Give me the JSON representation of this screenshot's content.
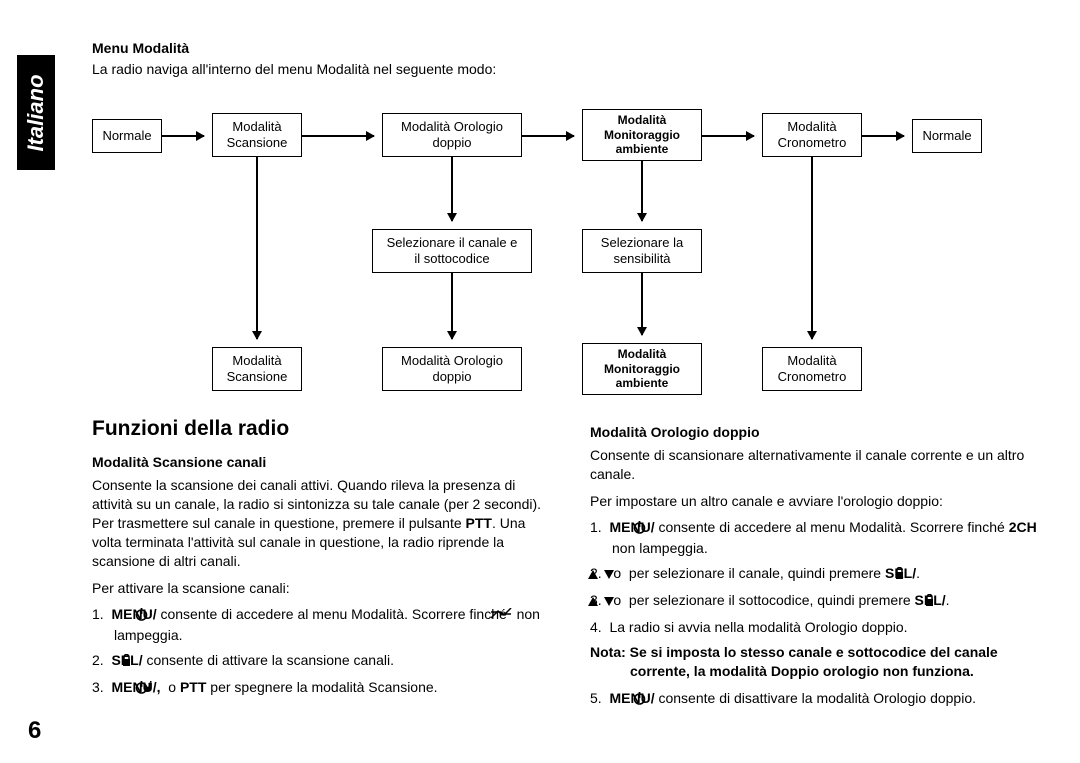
{
  "sidebar": {
    "language": "Italiano"
  },
  "page_number": "6",
  "header": {
    "title": "Menu Modalità",
    "intro": "La radio naviga all'interno del menu Modalità nel seguente modo:"
  },
  "diagram": {
    "nodes": {
      "n_normale1": {
        "lines": [
          "Normale"
        ]
      },
      "n_scan1": {
        "lines": [
          "Modalità",
          "Scansione"
        ]
      },
      "n_clock1": {
        "lines": [
          "Modalità Orologio",
          "doppio"
        ]
      },
      "n_monit1": {
        "lines": [
          "Modalità",
          "Monitoraggio",
          "ambiente"
        ],
        "bold": true
      },
      "n_crono1": {
        "lines": [
          "Modalità",
          "Cronometro"
        ]
      },
      "n_normale2": {
        "lines": [
          "Normale"
        ]
      },
      "n_selch": {
        "lines": [
          "Selezionare il canale e",
          "il sottocodice"
        ]
      },
      "n_selsens": {
        "lines": [
          "Selezionare la",
          "sensibilità"
        ]
      },
      "n_scan2": {
        "lines": [
          "Modalità",
          "Scansione"
        ]
      },
      "n_clock2": {
        "lines": [
          "Modalità Orologio",
          "doppio"
        ]
      },
      "n_monit2": {
        "lines": [
          "Modalità",
          "Monitoraggio",
          "ambiente"
        ],
        "bold": true
      },
      "n_crono2": {
        "lines": [
          "Modalità",
          "Cronometro"
        ]
      }
    }
  },
  "left": {
    "heading": "Funzioni della radio",
    "sub": "Modalità Scansione canali",
    "p1": "Consente la scansione dei canali attivi. Quando rileva la presenza di attività su un canale, la radio si sintonizza su tale canale (per 2 secondi). Per trasmettere sul canale in questione, premere il pulsante ",
    "p1b": "PTT",
    "p1c": ". Una volta terminata l'attività sul canale in questione, la radio riprende la scansione di altri canali.",
    "p2": "Per attivare la scansione canali:",
    "li1a": "MENU/",
    "li1b": " consente di accedere al menu Modalità. Scorrere finché ",
    "li1c": " non lampeggia.",
    "li2a": "SEL/",
    "li2b": " consente di attivare la scansione canali.",
    "li3a": "MENU/",
    "li3b": ", ",
    "li3c": " o ",
    "li3d": "PTT",
    "li3e": " per spegnere la modalità Scansione."
  },
  "right": {
    "sub": "Modalità Orologio doppio",
    "p1": "Consente di scansionare alternativamente il canale corrente e un altro canale.",
    "p2": "Per impostare un altro canale e avviare l'orologio doppio:",
    "li1a": "MENU/",
    "li1b": " consente di accedere al menu Modalità. Scorrere finché ",
    "li1c": " non lampeggia.",
    "li2a": " o ",
    "li2b": " per selezionare il canale, quindi premere ",
    "li2c": "SEL/",
    "li2d": ".",
    "li3a": " o ",
    "li3b": " per selezionare il sottocodice, quindi premere ",
    "li3c": "SEL/",
    "li3d": ".",
    "li4": "La radio si avvia nella modalità Orologio doppio.",
    "note_label": "Nota: ",
    "note": "Se si imposta lo stesso canale e sottocodice del canale corrente, la modalità Doppio orologio non funziona.",
    "li5a": "MENU/",
    "li5b": " consente di disattivare la modalità Orologio doppio."
  },
  "icons": {
    "power": "power",
    "lock": "lock",
    "scan": "scan",
    "note": "note",
    "up": "up",
    "down": "down",
    "twoch": "2CH"
  }
}
